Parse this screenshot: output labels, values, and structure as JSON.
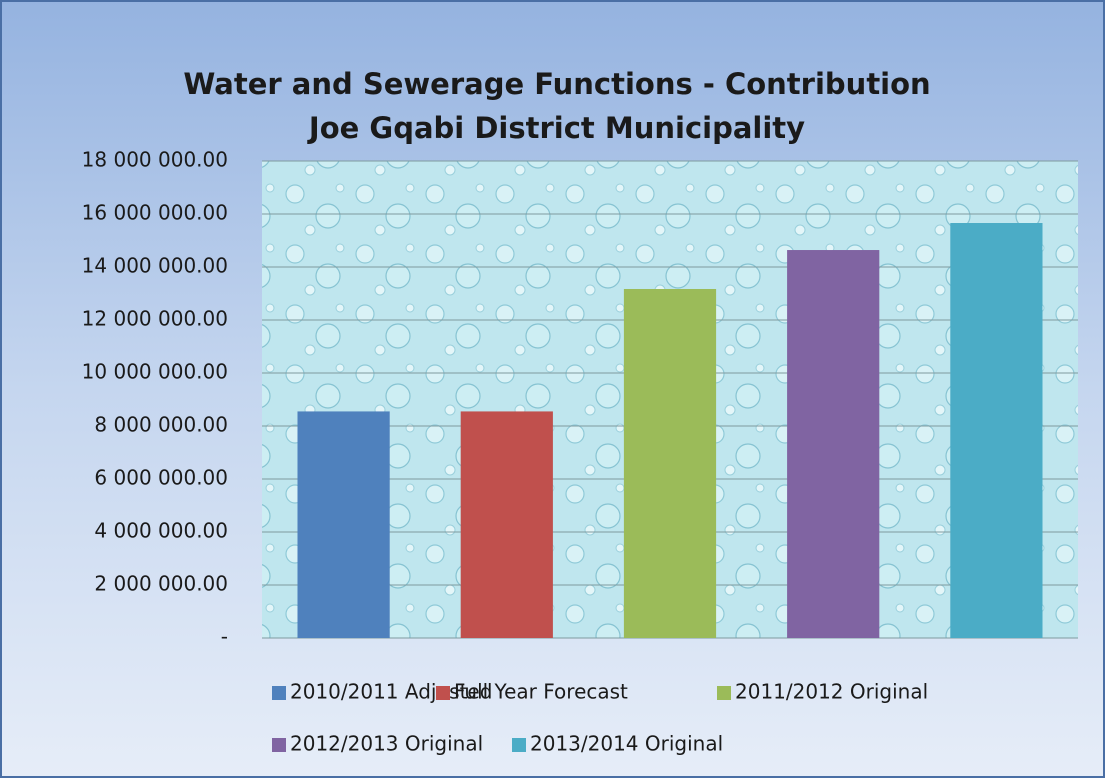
{
  "chart_data": {
    "type": "bar",
    "title": "Water and Sewerage Functions - Contribution",
    "subtitle": "Joe Gqabi District Municipality",
    "categories": [
      null
    ],
    "series": [
      {
        "name": "2010/2011 Adjusted",
        "color": "#4f81bd",
        "values": [
          8550000
        ]
      },
      {
        "name": "Full Year Forecast",
        "color": "#c0504d",
        "values": [
          8550000
        ]
      },
      {
        "name": "2011/2012 Original",
        "color": "#9bbb59",
        "values": [
          13170000
        ]
      },
      {
        "name": "2012/2013 Original",
        "color": "#8064a2",
        "values": [
          14640000
        ]
      },
      {
        "name": "2013/2014 Original",
        "color": "#4bacc6",
        "values": [
          15660000
        ]
      }
    ],
    "ylim": [
      0,
      18000000
    ],
    "yticks": [
      {
        "value": 0,
        "label": "-"
      },
      {
        "value": 2000000,
        "label": "2 000 000.00"
      },
      {
        "value": 4000000,
        "label": "4 000 000.00"
      },
      {
        "value": 6000000,
        "label": "6 000 000.00"
      },
      {
        "value": 8000000,
        "label": "8 000 000.00"
      },
      {
        "value": 10000000,
        "label": "10 000 000.00"
      },
      {
        "value": 12000000,
        "label": "12 000 000.00"
      },
      {
        "value": 14000000,
        "label": "14 000 000.00"
      },
      {
        "value": 16000000,
        "label": "16 000 000.00"
      },
      {
        "value": 18000000,
        "label": "18 000 000.00"
      }
    ],
    "grid": true,
    "legend": "bottom"
  }
}
